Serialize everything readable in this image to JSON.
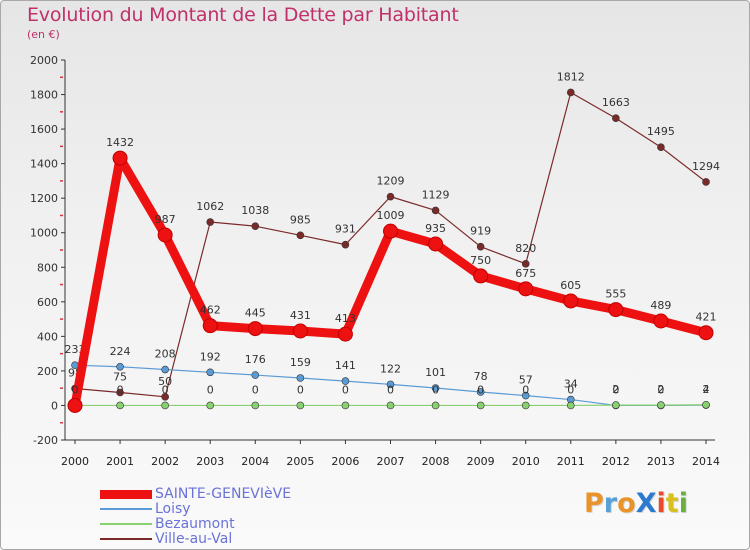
{
  "title": "Evolution du Montant de la Dette par Habitant",
  "unit_label": "(en €)",
  "brand": {
    "text": "ProXiti",
    "letter_colors": [
      "#e8942a",
      "#5aa0d8",
      "#e8942a",
      "#2c7bd0",
      "#e84a2a",
      "#d8c020",
      "#6ab040"
    ]
  },
  "chart_data": {
    "type": "line",
    "title": "Evolution du Montant de la Dette par Habitant",
    "ylabel": "(en €)",
    "xlabel": "",
    "ylim": [
      -200,
      2000
    ],
    "yticks": [
      -200,
      0,
      200,
      400,
      600,
      800,
      1000,
      1200,
      1400,
      1600,
      1800,
      2000
    ],
    "x": [
      "2000",
      "2001",
      "2002",
      "2003",
      "2004",
      "2005",
      "2006",
      "2007",
      "2008",
      "2009",
      "2010",
      "2011",
      "2012",
      "2013",
      "2014"
    ],
    "grid": false,
    "legend_position": "bottom-left",
    "series": [
      {
        "name": "SAINTE-GENEVIèVE",
        "color": "#ee1111",
        "weight": "thick",
        "values": [
          0,
          1432,
          987,
          462,
          445,
          431,
          413,
          1009,
          935,
          750,
          675,
          605,
          555,
          489,
          421
        ],
        "labels": [
          "0",
          "1432",
          "987",
          "462",
          "445",
          "431",
          "413",
          "1009",
          "935",
          "750",
          "675",
          "605",
          "555",
          "489",
          "421"
        ]
      },
      {
        "name": "Loisy",
        "color": "#5b9bd5",
        "weight": "thin",
        "values": [
          233,
          224,
          208,
          192,
          176,
          159,
          141,
          122,
          101,
          78,
          57,
          34,
          0,
          0,
          2
        ],
        "labels": [
          "233",
          "224",
          "208",
          "192",
          "176",
          "159",
          "141",
          "122",
          "101",
          "78",
          "57",
          "34",
          "0",
          "0",
          "2"
        ]
      },
      {
        "name": "Bezaumont",
        "color": "#88d070",
        "weight": "thin",
        "values": [
          0,
          0,
          0,
          0,
          0,
          0,
          0,
          0,
          0,
          0,
          0,
          0,
          2,
          2,
          4
        ],
        "labels": [
          "0",
          "0",
          "0",
          "0",
          "0",
          "0",
          "0",
          "0",
          "0",
          "0",
          "0",
          "0",
          "2",
          "2",
          "4"
        ]
      },
      {
        "name": "Ville-au-Val",
        "color": "#7b2a2a",
        "weight": "thin",
        "values": [
          98,
          75,
          50,
          1062,
          1038,
          985,
          931,
          1209,
          1129,
          919,
          820,
          1812,
          1663,
          1495,
          1294
        ],
        "labels": [
          "98",
          "75",
          "50",
          "1062",
          "1038",
          "985",
          "931",
          "1209",
          "1129",
          "919",
          "820",
          "1812",
          "1663",
          "1495",
          "1294"
        ]
      }
    ]
  }
}
